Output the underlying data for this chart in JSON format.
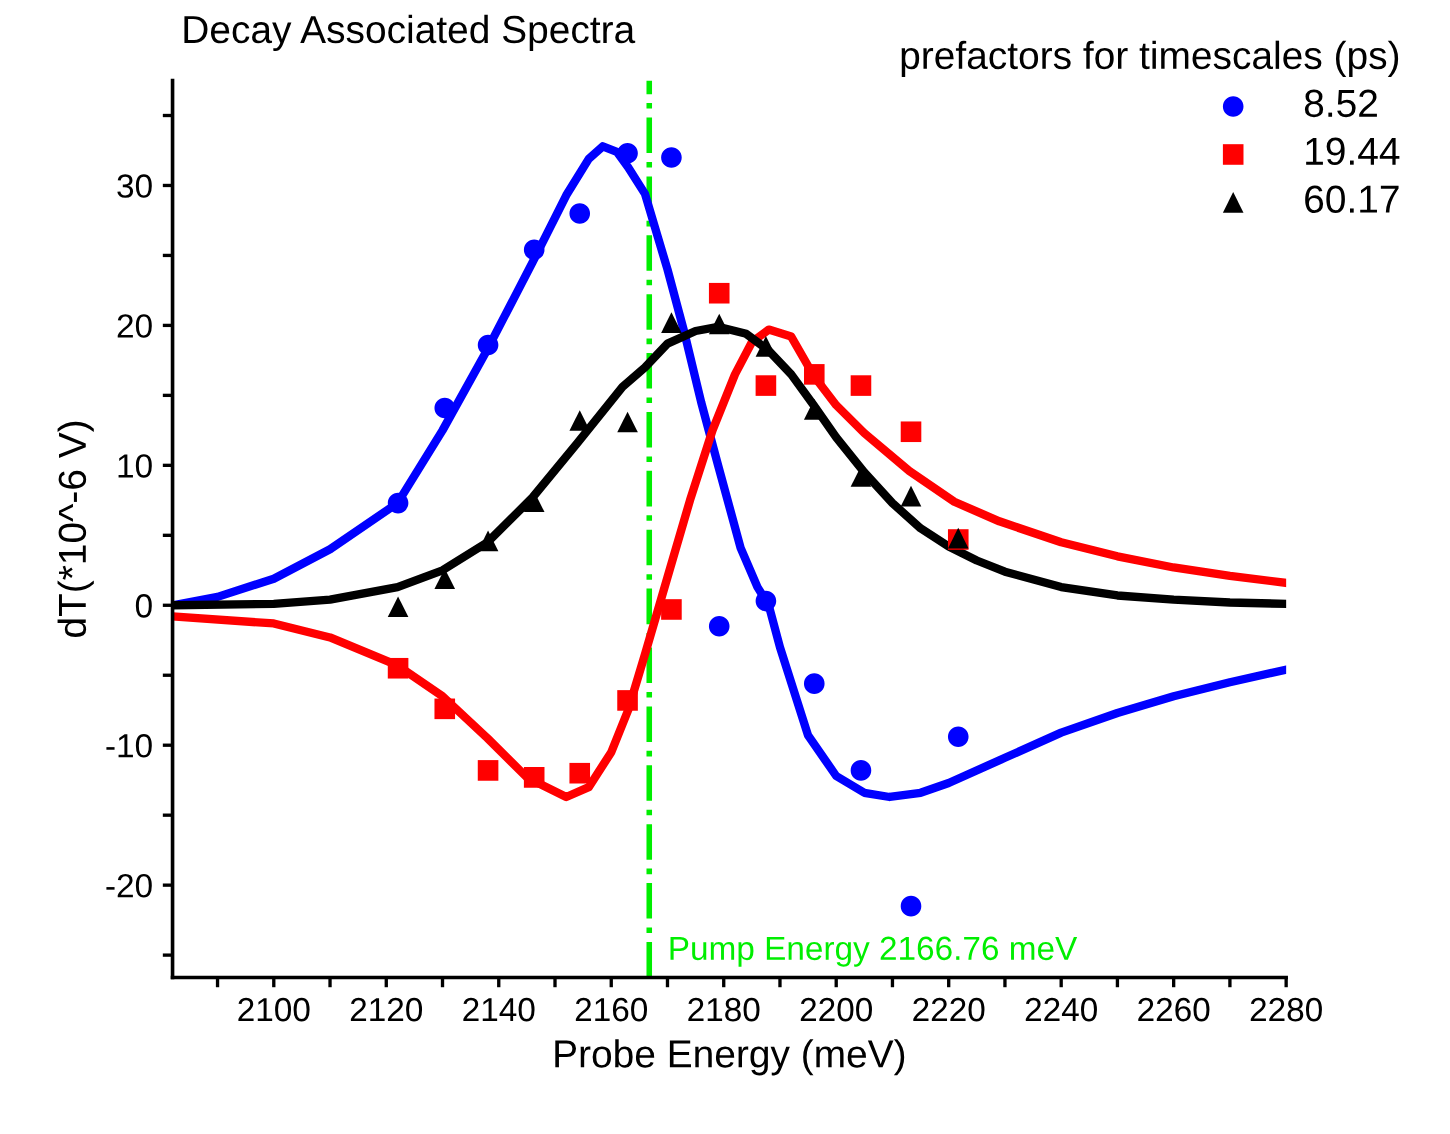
{
  "chart_data": {
    "type": "scatter",
    "title": "Decay Associated Spectra",
    "xlabel": "Probe Energy (meV)",
    "ylabel": "dT(*10^-6 V)",
    "legend_title": "prefactors for timescales (ps)",
    "legend": "top right",
    "grid": false,
    "xlim": [
      2082,
      2280
    ],
    "ylim": [
      -26.6,
      37.5
    ],
    "xticks": [
      {
        "value": 2090,
        "label": null
      },
      2100,
      {
        "value": 2110,
        "label": null
      },
      2120,
      {
        "value": 2130,
        "label": null
      },
      2140,
      {
        "value": 2150,
        "label": null
      },
      2160,
      {
        "value": 2170,
        "label": null
      },
      2180,
      {
        "value": 2190,
        "label": null
      },
      2200,
      {
        "value": 2210,
        "label": null
      },
      2220,
      {
        "value": 2230,
        "label": null
      },
      2240,
      {
        "value": 2250,
        "label": null
      },
      2260,
      {
        "value": 2270,
        "label": null
      },
      2280
    ],
    "yticks": [
      {
        "value": -25,
        "label": null
      },
      -20,
      {
        "value": -15,
        "label": null
      },
      -10,
      {
        "value": -5,
        "label": null
      },
      0,
      {
        "value": 5,
        "label": null
      },
      10,
      {
        "value": 15,
        "label": null
      },
      20,
      {
        "value": 25,
        "label": null
      },
      30,
      {
        "value": 35,
        "label": null
      }
    ],
    "ref_lines": [
      {
        "axis": "x",
        "value": 2166.76,
        "label": "Pump Energy 2166.76 meV",
        "color": "#00ee00",
        "line_style": "dashdot"
      }
    ],
    "series": [
      {
        "type": "line",
        "color": "#0000ff",
        "x": [
          2082,
          2090,
          2100,
          2110,
          2122,
          2130,
          2138,
          2146,
          2152,
          2156,
          2158.5,
          2161,
          2163,
          2166,
          2170,
          2173,
          2176,
          2179,
          2183,
          2186,
          2188,
          2190,
          2195,
          2200,
          2205,
          2209.5,
          2215,
          2220,
          2230,
          2240,
          2250,
          2260,
          2270,
          2280
        ],
        "values": [
          0,
          0.6,
          1.9,
          4.0,
          7.3,
          12.5,
          18.3,
          24.5,
          29.3,
          31.9,
          32.8,
          32.4,
          31.3,
          29.4,
          24.0,
          19.5,
          14.5,
          10.0,
          4.1,
          1.3,
          0,
          -3.0,
          -9.3,
          -12.2,
          -13.4,
          -13.7,
          -13.4,
          -12.7,
          -10.9,
          -9.1,
          -7.7,
          -6.5,
          -5.5,
          -4.6
        ]
      },
      {
        "type": "line",
        "color": "#ff0000",
        "x": [
          2082,
          2100,
          2110,
          2122,
          2130,
          2138,
          2145,
          2152,
          2156,
          2160,
          2163,
          2166,
          2170,
          2174,
          2178,
          2182,
          2185,
          2188,
          2192,
          2196,
          2200,
          2205,
          2213,
          2221,
          2229,
          2240,
          2250,
          2260,
          2270,
          2280
        ],
        "values": [
          -0.8,
          -1.3,
          -2.3,
          -4.3,
          -6.5,
          -9.5,
          -12.3,
          -13.7,
          -13.0,
          -10.5,
          -7.5,
          -3.5,
          2.0,
          7.5,
          12.5,
          16.5,
          18.8,
          19.7,
          19.2,
          16.4,
          14.3,
          12.3,
          9.6,
          7.4,
          6.0,
          4.5,
          3.5,
          2.7,
          2.1,
          1.6
        ]
      },
      {
        "type": "line",
        "color": "#000000",
        "x": [
          2082,
          2100,
          2110,
          2122,
          2130,
          2138,
          2146,
          2154,
          2162,
          2166,
          2170,
          2175,
          2179,
          2184,
          2188,
          2192,
          2196,
          2200,
          2205,
          2210,
          2215,
          2220,
          2225,
          2230,
          2240,
          2250,
          2260,
          2270,
          2280
        ],
        "values": [
          0,
          0.1,
          0.4,
          1.3,
          2.5,
          4.5,
          7.7,
          11.6,
          15.6,
          17.0,
          18.7,
          19.6,
          19.9,
          19.4,
          18.2,
          16.5,
          14.3,
          12.0,
          9.5,
          7.3,
          5.5,
          4.2,
          3.2,
          2.4,
          1.3,
          0.7,
          0.4,
          0.2,
          0.1
        ]
      },
      {
        "name": "8.52",
        "color": "#0000ff",
        "marker": "circle",
        "x": [
          2122.1,
          2130.4,
          2138.1,
          2146.3,
          2154.4,
          2162.9,
          2170.7,
          2179.2,
          2187.5,
          2196.1,
          2204.4,
          2213.3,
          2221.7
        ],
        "values": [
          7.3,
          14.1,
          18.6,
          25.4,
          28.0,
          32.3,
          32.0,
          -1.5,
          0.3,
          -5.6,
          -11.8,
          -21.5,
          -9.4
        ]
      },
      {
        "name": "19.44",
        "color": "#ff0000",
        "marker": "square",
        "x": [
          2122.1,
          2130.4,
          2138.1,
          2146.3,
          2154.4,
          2162.9,
          2170.7,
          2179.2,
          2187.5,
          2196.1,
          2204.4,
          2213.3,
          2221.7
        ],
        "values": [
          -4.5,
          -7.4,
          -11.8,
          -12.3,
          -12.0,
          -6.8,
          -0.3,
          22.3,
          15.7,
          16.5,
          15.7,
          12.4,
          4.7
        ]
      },
      {
        "name": "60.17",
        "color": "#000000",
        "marker": "triangle",
        "x": [
          2122.1,
          2130.4,
          2138.1,
          2146.3,
          2154.4,
          2162.9,
          2170.7,
          2179.2,
          2187.5,
          2196.1,
          2204.4,
          2213.3,
          2221.7
        ],
        "values": [
          -0.1,
          1.9,
          4.6,
          7.4,
          13.2,
          13.1,
          20.2,
          20.1,
          18.5,
          14.0,
          9.2,
          7.8,
          4.8
        ]
      }
    ]
  }
}
